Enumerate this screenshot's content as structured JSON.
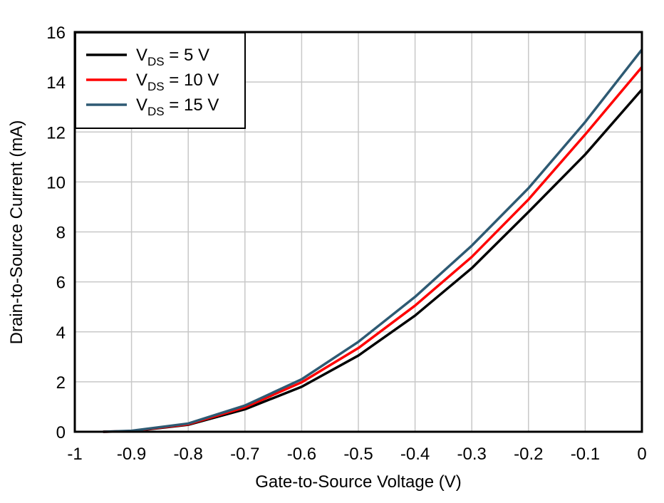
{
  "chart_data": {
    "type": "line",
    "title": "",
    "xlabel": "Gate-to-Source Voltage (V)",
    "ylabel": "Drain-to-Source Current (mA)",
    "xlim": [
      -1,
      0
    ],
    "ylim": [
      0,
      16
    ],
    "xticks": [
      "-1",
      "-0.9",
      "-0.8",
      "-0.7",
      "-0.6",
      "-0.5",
      "-0.4",
      "-0.3",
      "-0.2",
      "-0.1",
      "0"
    ],
    "yticks": [
      "0",
      "2",
      "4",
      "6",
      "8",
      "10",
      "12",
      "14",
      "16"
    ],
    "grid": true,
    "legend_position": "top-left",
    "x": [
      -0.95,
      -0.9,
      -0.8,
      -0.7,
      -0.6,
      -0.5,
      -0.4,
      -0.3,
      -0.2,
      -0.1,
      0
    ],
    "series": [
      {
        "name_main": "V",
        "name_sub": "DS",
        "name_rest": " = 5 V",
        "color": "#000000",
        "values": [
          0,
          0.02,
          0.28,
          0.9,
          1.8,
          3.05,
          4.65,
          6.55,
          8.8,
          11.1,
          13.7
        ]
      },
      {
        "name_main": "V",
        "name_sub": "DS",
        "name_rest": " = 10 V",
        "color": "#ff0000",
        "values": [
          0,
          0.03,
          0.3,
          0.98,
          1.98,
          3.35,
          5.05,
          7.0,
          9.3,
          11.9,
          14.6
        ]
      },
      {
        "name_main": "V",
        "name_sub": "DS",
        "name_rest": " = 15 V",
        "color": "#2e5a73",
        "values": [
          0,
          0.04,
          0.33,
          1.05,
          2.1,
          3.6,
          5.4,
          7.45,
          9.75,
          12.4,
          15.3
        ]
      }
    ]
  }
}
